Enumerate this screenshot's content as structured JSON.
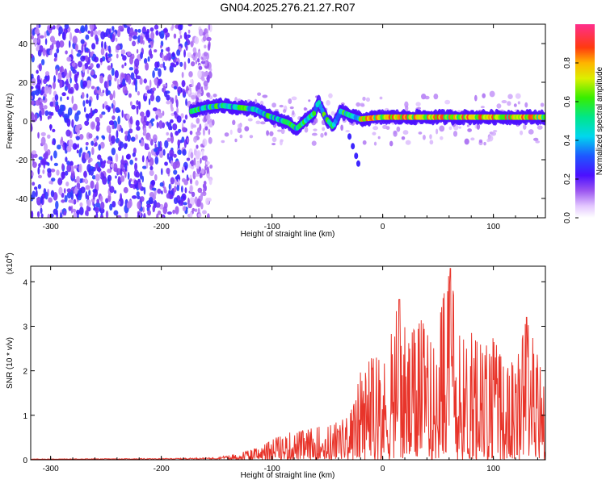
{
  "figure_title": "GN04.2025.276.21.27.R07",
  "chart_data": [
    {
      "type": "heatmap",
      "title": "GN04.2025.276.21.27.R07",
      "xlabel": "Height of straight line (km)",
      "ylabel": "Frequency (Hz)",
      "xlim": [
        -318,
        147
      ],
      "ylim": [
        -50,
        50
      ],
      "xticks": [
        -300,
        -200,
        -100,
        0,
        100
      ],
      "yticks": [
        -40,
        -20,
        0,
        20,
        40
      ],
      "xtick_labels": [
        "-300",
        "-200",
        "-100",
        "0",
        "100"
      ],
      "ytick_labels": [
        "-40",
        "-20",
        "0",
        "20",
        "40"
      ],
      "noise_region_x": [
        -318,
        -155
      ],
      "signal_ridge": [
        {
          "x": -173,
          "y": 5
        },
        {
          "x": -160,
          "y": 7
        },
        {
          "x": -145,
          "y": 8
        },
        {
          "x": -130,
          "y": 7
        },
        {
          "x": -115,
          "y": 6
        },
        {
          "x": -105,
          "y": 3
        },
        {
          "x": -95,
          "y": 1
        },
        {
          "x": -85,
          "y": -1
        },
        {
          "x": -78,
          "y": -4
        },
        {
          "x": -70,
          "y": 0
        },
        {
          "x": -62,
          "y": 4
        },
        {
          "x": -58,
          "y": 10
        },
        {
          "x": -52,
          "y": 2
        },
        {
          "x": -45,
          "y": -3
        },
        {
          "x": -38,
          "y": 5
        },
        {
          "x": -30,
          "y": 3
        },
        {
          "x": -20,
          "y": 1
        },
        {
          "x": 0,
          "y": 2
        },
        {
          "x": 50,
          "y": 2
        },
        {
          "x": 100,
          "y": 2
        },
        {
          "x": 147,
          "y": 2
        }
      ],
      "colorbar": {
        "label": "Normalized spectral amplitude",
        "range": [
          0,
          1
        ],
        "ticks": [
          0.0,
          0.2,
          0.4,
          0.6,
          0.8
        ],
        "tick_labels": [
          "0.0",
          "0.2",
          "0.4",
          "0.6",
          "0.8"
        ]
      }
    },
    {
      "type": "line",
      "xlabel": "Height of straight line (km)",
      "ylabel": "SNR (10 * v/v)",
      "multiplier_label": "(x10",
      "multiplier_exponent": "4",
      "multiplier_close": ")",
      "xlim": [
        -318,
        147
      ],
      "ylim": [
        0,
        4.35
      ],
      "xticks": [
        -300,
        -200,
        -100,
        0,
        100
      ],
      "yticks": [
        0,
        1,
        2,
        3,
        4
      ],
      "xtick_labels": [
        "-300",
        "-200",
        "-100",
        "0",
        "100"
      ],
      "ytick_labels": [
        "0",
        "1",
        "2",
        "3",
        "4"
      ],
      "color": "#e8342a",
      "envelope": [
        {
          "x": -318,
          "y": 0.02
        },
        {
          "x": -200,
          "y": 0.03
        },
        {
          "x": -150,
          "y": 0.05
        },
        {
          "x": -130,
          "y": 0.15
        },
        {
          "x": -110,
          "y": 0.3
        },
        {
          "x": -90,
          "y": 0.6
        },
        {
          "x": -70,
          "y": 0.7
        },
        {
          "x": -50,
          "y": 0.8
        },
        {
          "x": -30,
          "y": 1.0
        },
        {
          "x": -20,
          "y": 2.0
        },
        {
          "x": -10,
          "y": 2.4
        },
        {
          "x": 0,
          "y": 2.2
        },
        {
          "x": 15,
          "y": 3.6
        },
        {
          "x": 25,
          "y": 2.8
        },
        {
          "x": 35,
          "y": 3.2
        },
        {
          "x": 45,
          "y": 2.6
        },
        {
          "x": 55,
          "y": 3.8
        },
        {
          "x": 61,
          "y": 4.3
        },
        {
          "x": 70,
          "y": 2.8
        },
        {
          "x": 80,
          "y": 2.9
        },
        {
          "x": 90,
          "y": 2.6
        },
        {
          "x": 100,
          "y": 2.8
        },
        {
          "x": 110,
          "y": 2.2
        },
        {
          "x": 120,
          "y": 2.2
        },
        {
          "x": 130,
          "y": 3.2
        },
        {
          "x": 140,
          "y": 2.4
        },
        {
          "x": 147,
          "y": 1.6
        }
      ]
    }
  ]
}
